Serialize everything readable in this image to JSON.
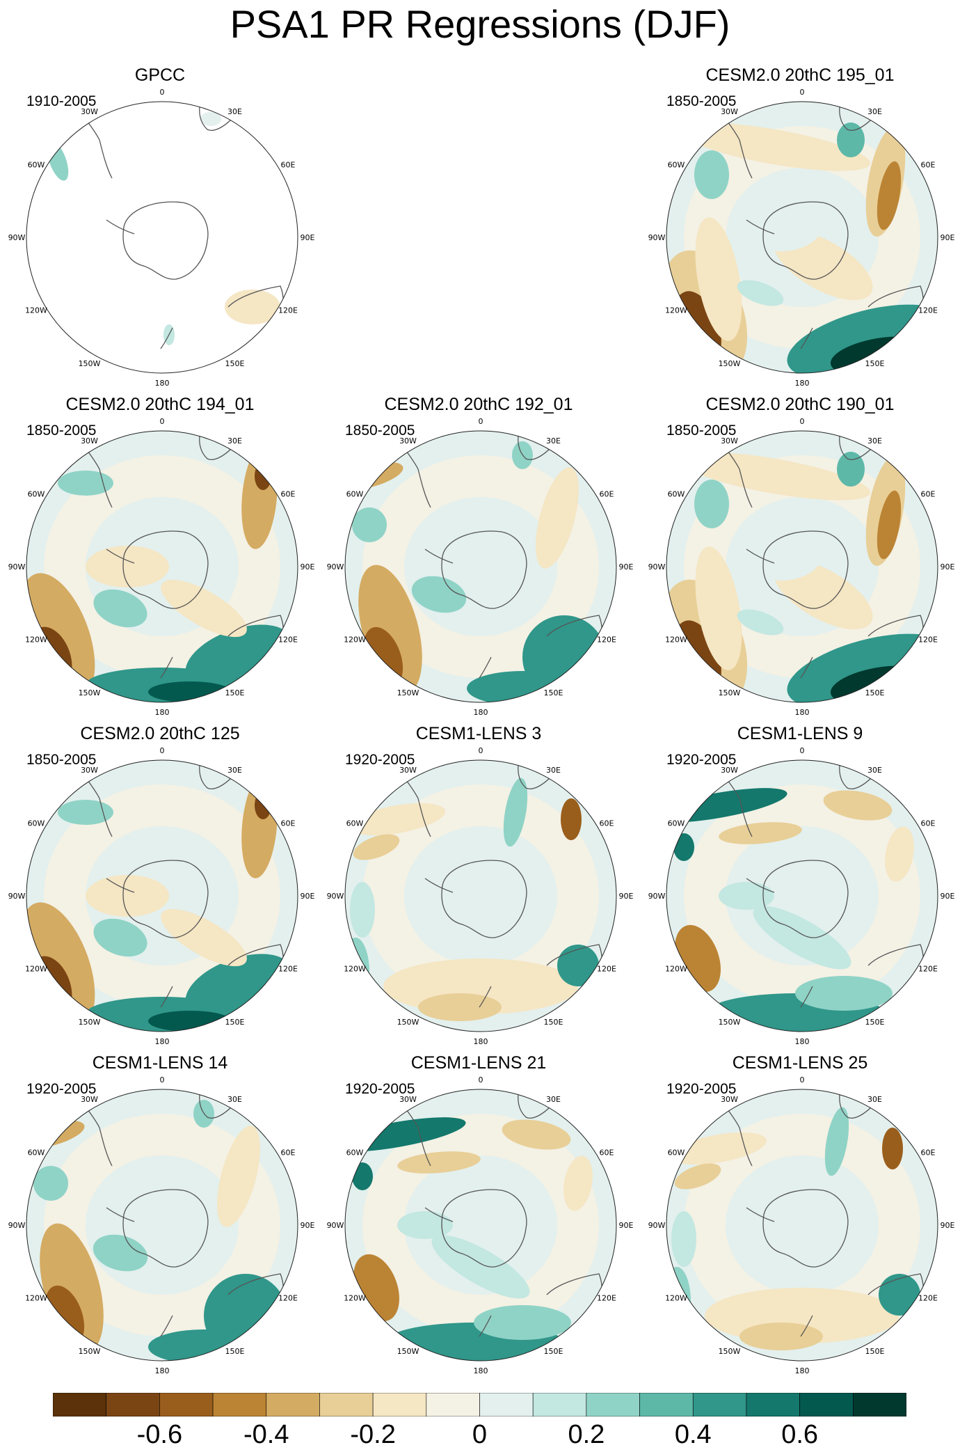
{
  "title": "PSA1 PR Regressions (DJF)",
  "lon_labels": [
    "0",
    "30E",
    "60E",
    "90E",
    "120E",
    "150E",
    "180",
    "150W",
    "120W",
    "90W",
    "60W",
    "30W"
  ],
  "panels": [
    {
      "id": "gpcc",
      "title": "GPCC",
      "years": "1910-2005",
      "kind": "obs",
      "pattern": "gpcc"
    },
    {
      "id": "cesm2-195",
      "title": "CESM2.0 20thC 195_01",
      "years": "1850-2005",
      "kind": "model",
      "pattern": "a"
    },
    {
      "id": "cesm2-194",
      "title": "CESM2.0 20thC 194_01",
      "years": "1850-2005",
      "kind": "model",
      "pattern": "b"
    },
    {
      "id": "cesm2-192",
      "title": "CESM2.0 20thC 192_01",
      "years": "1850-2005",
      "kind": "model",
      "pattern": "c"
    },
    {
      "id": "cesm2-190",
      "title": "CESM2.0 20thC 190_01",
      "years": "1850-2005",
      "kind": "model",
      "pattern": "a"
    },
    {
      "id": "cesm2-125",
      "title": "CESM2.0 20thC 125",
      "years": "1850-2005",
      "kind": "model",
      "pattern": "b"
    },
    {
      "id": "lens-3",
      "title": "CESM1-LENS 3",
      "years": "1920-2005",
      "kind": "model",
      "pattern": "d"
    },
    {
      "id": "lens-9",
      "title": "CESM1-LENS 9",
      "years": "1920-2005",
      "kind": "model",
      "pattern": "e"
    },
    {
      "id": "lens-14",
      "title": "CESM1-LENS 14",
      "years": "1920-2005",
      "kind": "model",
      "pattern": "c"
    },
    {
      "id": "lens-21",
      "title": "CESM1-LENS 21",
      "years": "1920-2005",
      "kind": "model",
      "pattern": "e"
    },
    {
      "id": "lens-25",
      "title": "CESM1-LENS 25",
      "years": "1920-2005",
      "kind": "model",
      "pattern": "d"
    }
  ],
  "colorbar": {
    "colors": [
      "#5b3209",
      "#7b4513",
      "#9a5e1c",
      "#bb8434",
      "#d4ab62",
      "#e8cf97",
      "#f5e6c4",
      "#f4f1e5",
      "#e3f0ee",
      "#c3e7e1",
      "#8fd3c6",
      "#5db8a8",
      "#30978a",
      "#14786c",
      "#04594f",
      "#01392f"
    ],
    "tick_labels": [
      "-0.6",
      "-0.4",
      "-0.2",
      "0",
      "0.2",
      "0.4",
      "0.6"
    ],
    "tick_values": [
      -0.6,
      -0.4,
      -0.2,
      0,
      0.2,
      0.4,
      0.6
    ],
    "range": [
      -0.8,
      0.8
    ]
  }
}
